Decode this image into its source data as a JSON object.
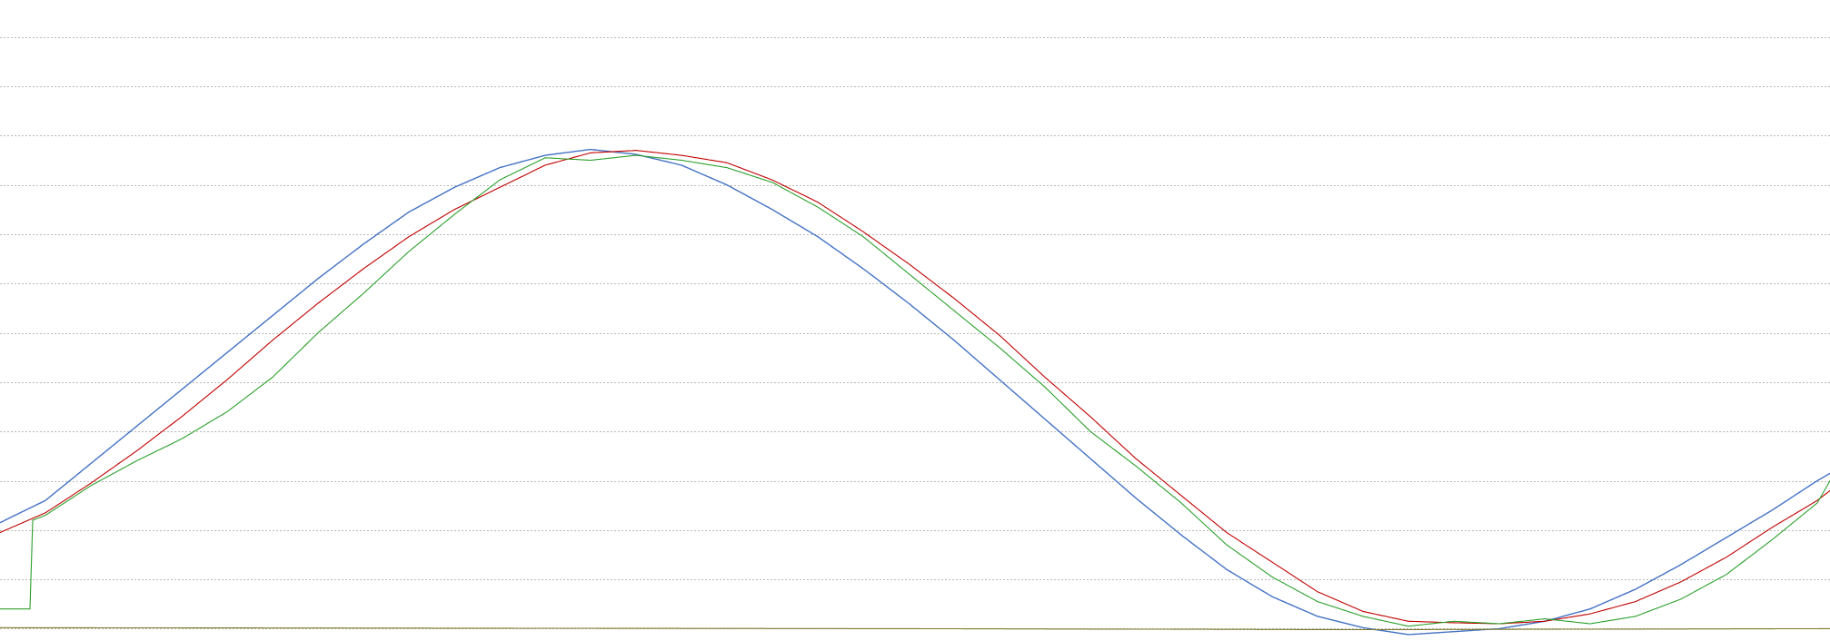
{
  "chart_data": {
    "type": "line",
    "title": "",
    "xlabel": "",
    "ylabel": "",
    "grid": true,
    "legend": "none",
    "ylim": [
      -0.25,
      12.75
    ],
    "gridlines": [
      12,
      11,
      10,
      9,
      8,
      7,
      6,
      5,
      4,
      3,
      2,
      1,
      0
    ],
    "series": [
      {
        "color": "#4472c4",
        "points": [
          [
            0,
            2.15
          ],
          [
            50,
            2.6
          ],
          [
            100,
            3.35
          ],
          [
            150,
            4.1
          ],
          [
            200,
            4.85
          ],
          [
            250,
            5.6
          ],
          [
            300,
            6.35
          ],
          [
            350,
            7.1
          ],
          [
            400,
            7.8
          ],
          [
            450,
            8.45
          ],
          [
            500,
            8.95
          ],
          [
            550,
            9.35
          ],
          [
            600,
            9.6
          ],
          [
            650,
            9.72
          ],
          [
            700,
            9.62
          ],
          [
            750,
            9.4
          ],
          [
            800,
            9.0
          ],
          [
            850,
            8.5
          ],
          [
            900,
            7.95
          ],
          [
            950,
            7.3
          ],
          [
            1000,
            6.6
          ],
          [
            1050,
            5.85
          ],
          [
            1100,
            5.05
          ],
          [
            1150,
            4.25
          ],
          [
            1200,
            3.45
          ],
          [
            1250,
            2.65
          ],
          [
            1300,
            1.9
          ],
          [
            1350,
            1.2
          ],
          [
            1400,
            0.65
          ],
          [
            1450,
            0.25
          ],
          [
            1500,
            0.02
          ],
          [
            1550,
            -0.12
          ],
          [
            1600,
            -0.06
          ],
          [
            1650,
            0.0
          ],
          [
            1700,
            0.15
          ],
          [
            1750,
            0.4
          ],
          [
            1800,
            0.8
          ],
          [
            1850,
            1.3
          ],
          [
            1900,
            1.85
          ],
          [
            1950,
            2.4
          ],
          [
            2000,
            3.0
          ],
          [
            2014,
            3.15
          ]
        ]
      },
      {
        "color": "#c00000",
        "points": [
          [
            0,
            1.95
          ],
          [
            50,
            2.35
          ],
          [
            100,
            2.95
          ],
          [
            150,
            3.6
          ],
          [
            200,
            4.3
          ],
          [
            250,
            5.05
          ],
          [
            300,
            5.85
          ],
          [
            350,
            6.6
          ],
          [
            400,
            7.3
          ],
          [
            450,
            7.95
          ],
          [
            500,
            8.5
          ],
          [
            550,
            8.95
          ],
          [
            600,
            9.4
          ],
          [
            650,
            9.65
          ],
          [
            700,
            9.7
          ],
          [
            750,
            9.6
          ],
          [
            800,
            9.45
          ],
          [
            850,
            9.1
          ],
          [
            900,
            8.65
          ],
          [
            950,
            8.05
          ],
          [
            1000,
            7.4
          ],
          [
            1050,
            6.7
          ],
          [
            1100,
            5.95
          ],
          [
            1150,
            5.1
          ],
          [
            1200,
            4.3
          ],
          [
            1250,
            3.45
          ],
          [
            1300,
            2.7
          ],
          [
            1350,
            1.95
          ],
          [
            1400,
            1.35
          ],
          [
            1450,
            0.75
          ],
          [
            1500,
            0.35
          ],
          [
            1550,
            0.15
          ],
          [
            1600,
            0.12
          ],
          [
            1650,
            0.1
          ],
          [
            1700,
            0.15
          ],
          [
            1750,
            0.3
          ],
          [
            1800,
            0.55
          ],
          [
            1850,
            0.95
          ],
          [
            1900,
            1.45
          ],
          [
            1950,
            2.05
          ],
          [
            2000,
            2.6
          ],
          [
            2014,
            2.8
          ]
        ]
      },
      {
        "color": "#2ca02c",
        "points": [
          [
            0,
            0.4
          ],
          [
            33,
            0.4
          ],
          [
            36,
            2.2
          ],
          [
            50,
            2.3
          ],
          [
            100,
            2.9
          ],
          [
            150,
            3.4
          ],
          [
            200,
            3.85
          ],
          [
            250,
            4.4
          ],
          [
            300,
            5.1
          ],
          [
            350,
            6.0
          ],
          [
            400,
            6.8
          ],
          [
            450,
            7.65
          ],
          [
            500,
            8.4
          ],
          [
            550,
            9.1
          ],
          [
            600,
            9.55
          ],
          [
            650,
            9.5
          ],
          [
            700,
            9.6
          ],
          [
            750,
            9.5
          ],
          [
            800,
            9.35
          ],
          [
            850,
            9.05
          ],
          [
            900,
            8.55
          ],
          [
            950,
            7.95
          ],
          [
            1000,
            7.2
          ],
          [
            1050,
            6.45
          ],
          [
            1100,
            5.7
          ],
          [
            1150,
            4.9
          ],
          [
            1200,
            4.0
          ],
          [
            1250,
            3.3
          ],
          [
            1300,
            2.55
          ],
          [
            1350,
            1.7
          ],
          [
            1400,
            1.05
          ],
          [
            1450,
            0.55
          ],
          [
            1500,
            0.25
          ],
          [
            1550,
            0.05
          ],
          [
            1600,
            0.15
          ],
          [
            1650,
            0.1
          ],
          [
            1700,
            0.2
          ],
          [
            1750,
            0.1
          ],
          [
            1800,
            0.25
          ],
          [
            1850,
            0.6
          ],
          [
            1900,
            1.1
          ],
          [
            1950,
            1.8
          ],
          [
            2000,
            2.55
          ],
          [
            2014,
            3.0
          ]
        ]
      },
      {
        "color": "#7d7a2b",
        "points": [
          [
            0,
            0.02
          ],
          [
            500,
            0.01
          ],
          [
            1000,
            0.0
          ],
          [
            1500,
            -0.02
          ],
          [
            2014,
            0.0
          ]
        ]
      }
    ]
  }
}
